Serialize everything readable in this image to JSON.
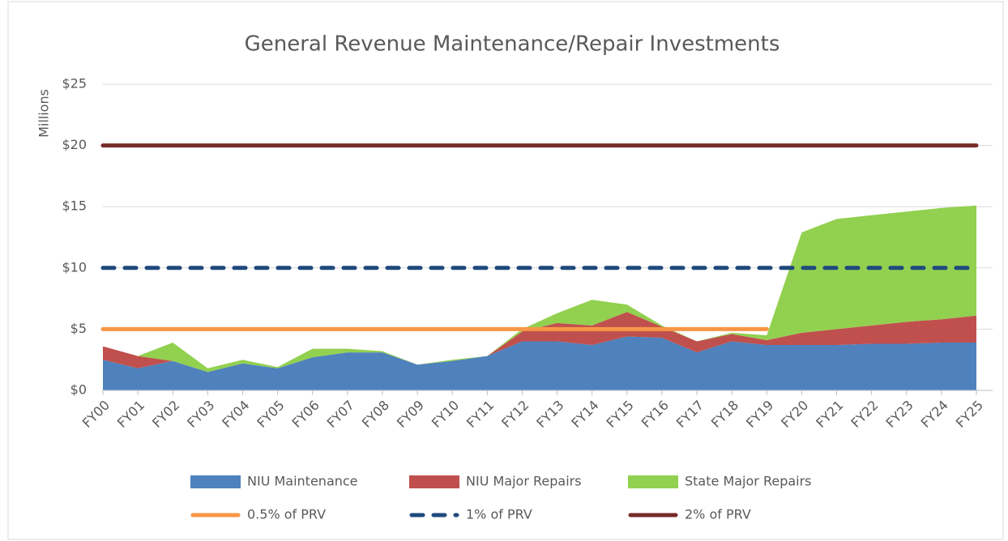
{
  "chart_data": {
    "type": "area",
    "title": "General Revenue Maintenance/Repair Investments",
    "y_label": "Millions",
    "categories": [
      "FY00",
      "FY01",
      "FY02",
      "FY03",
      "FY04",
      "FY05",
      "FY06",
      "FY07",
      "FY08",
      "FY09",
      "FY10",
      "FY11",
      "FY12",
      "FY13",
      "FY14",
      "FY15",
      "FY16",
      "FY17",
      "FY18",
      "FY19",
      "FY20",
      "FY21",
      "FY22",
      "FY23",
      "FY24",
      "FY25"
    ],
    "ylim": [
      0,
      25
    ],
    "yticks": [
      {
        "value": 0,
        "label": "$0"
      },
      {
        "value": 5,
        "label": "$5"
      },
      {
        "value": 10,
        "label": "$10"
      },
      {
        "value": 15,
        "label": "$15"
      },
      {
        "value": 20,
        "label": "$20"
      },
      {
        "value": 25,
        "label": "$25"
      }
    ],
    "grid": true,
    "stacked": true,
    "legend": "bottom",
    "series": [
      {
        "name": "NIU Maintenance",
        "type": "area",
        "color": "#4f81bd",
        "values": [
          2.5,
          1.8,
          2.4,
          1.5,
          2.2,
          1.8,
          2.7,
          3.1,
          3.1,
          2.1,
          2.4,
          2.8,
          4.0,
          4.0,
          3.7,
          4.4,
          4.3,
          3.1,
          4.0,
          3.7,
          3.7,
          3.7,
          3.8,
          3.8,
          3.9,
          3.9
        ]
      },
      {
        "name": "NIU Major Repairs",
        "type": "area",
        "color": "#c0504d",
        "values": [
          1.1,
          1.0,
          0,
          0,
          0,
          0,
          0,
          0,
          0,
          0,
          0,
          0,
          0.8,
          1.5,
          1.6,
          2.0,
          0.9,
          0.9,
          0.6,
          0.4,
          1.0,
          1.3,
          1.5,
          1.8,
          1.9,
          2.2
        ]
      },
      {
        "name": "State Major Repairs",
        "type": "area",
        "color": "#92d050",
        "values": [
          0,
          0,
          1.5,
          0.3,
          0.3,
          0.1,
          0.7,
          0.3,
          0.1,
          0,
          0.1,
          0,
          0.2,
          0.8,
          2.1,
          0.6,
          0.1,
          0,
          0.1,
          0.4,
          8.2,
          9.0,
          9.0,
          9.0,
          9.1,
          9.0
        ]
      },
      {
        "name": "0.5% of PRV",
        "type": "line",
        "color": "#f79646",
        "dashed": false,
        "values": [
          5,
          5,
          5,
          5,
          5,
          5,
          5,
          5,
          5,
          5,
          5,
          5,
          5,
          5,
          5,
          5,
          5,
          5,
          5,
          5,
          null,
          null,
          null,
          null,
          null,
          null
        ]
      },
      {
        "name": "1% of PRV",
        "type": "line",
        "color": "#1f497d",
        "dashed": true,
        "values": [
          10,
          10,
          10,
          10,
          10,
          10,
          10,
          10,
          10,
          10,
          10,
          10,
          10,
          10,
          10,
          10,
          10,
          10,
          10,
          10,
          10,
          10,
          10,
          10,
          10,
          10
        ]
      },
      {
        "name": "2% of PRV",
        "type": "line",
        "color": "#772c2a",
        "dashed": false,
        "values": [
          20,
          20,
          20,
          20,
          20,
          20,
          20,
          20,
          20,
          20,
          20,
          20,
          20,
          20,
          20,
          20,
          20,
          20,
          20,
          20,
          20,
          20,
          20,
          20,
          20,
          20
        ]
      }
    ]
  }
}
